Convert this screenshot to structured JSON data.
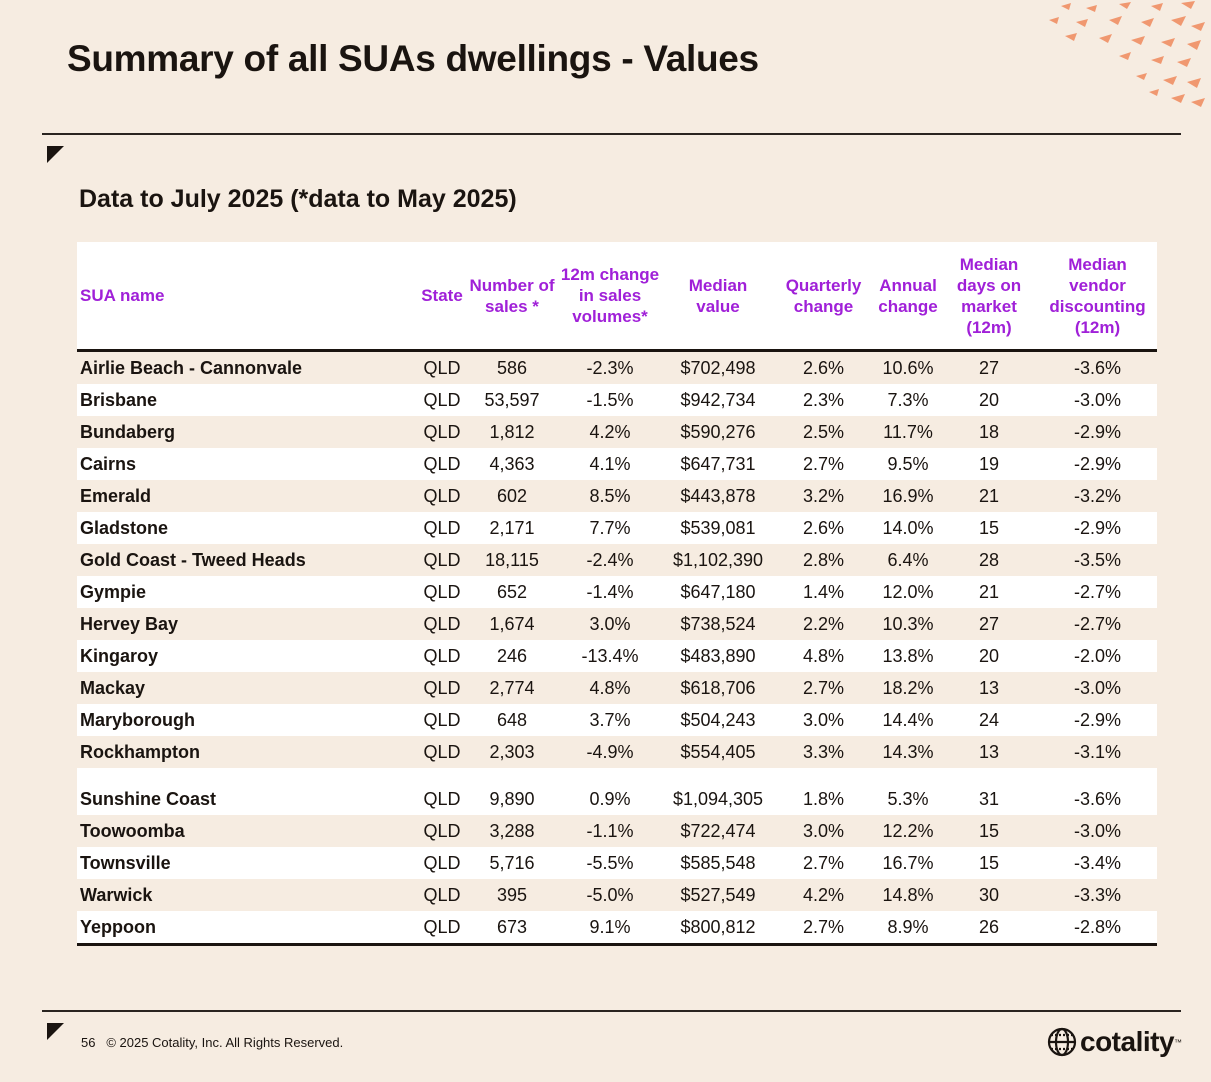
{
  "title": "Summary of all SUAs dwellings  - Values",
  "subtitle": "Data to July 2025 (*data to May 2025)",
  "table": {
    "headers": [
      "SUA name",
      "State",
      "Number of sales *",
      "12m change in sales volumes*",
      "Median value",
      "Quarterly change",
      "Annual change",
      "Median days on market (12m)",
      "Median vendor discounting (12m)"
    ],
    "rows": [
      [
        "Airlie Beach - Cannonvale",
        "QLD",
        "586",
        "-2.3%",
        "$702,498",
        "2.6%",
        "10.6%",
        "27",
        "-3.6%"
      ],
      [
        "Brisbane",
        "QLD",
        "53,597",
        "-1.5%",
        "$942,734",
        "2.3%",
        "7.3%",
        "20",
        "-3.0%"
      ],
      [
        "Bundaberg",
        "QLD",
        "1,812",
        "4.2%",
        "$590,276",
        "2.5%",
        "11.7%",
        "18",
        "-2.9%"
      ],
      [
        "Cairns",
        "QLD",
        "4,363",
        "4.1%",
        "$647,731",
        "2.7%",
        "9.5%",
        "19",
        "-2.9%"
      ],
      [
        "Emerald",
        "QLD",
        "602",
        "8.5%",
        "$443,878",
        "3.2%",
        "16.9%",
        "21",
        "-3.2%"
      ],
      [
        "Gladstone",
        "QLD",
        "2,171",
        "7.7%",
        "$539,081",
        "2.6%",
        "14.0%",
        "15",
        "-2.9%"
      ],
      [
        "Gold Coast - Tweed Heads",
        "QLD",
        "18,115",
        "-2.4%",
        "$1,102,390",
        "2.8%",
        "6.4%",
        "28",
        "-3.5%"
      ],
      [
        "Gympie",
        "QLD",
        "652",
        "-1.4%",
        "$647,180",
        "1.4%",
        "12.0%",
        "21",
        "-2.7%"
      ],
      [
        "Hervey Bay",
        "QLD",
        "1,674",
        "3.0%",
        "$738,524",
        "2.2%",
        "10.3%",
        "27",
        "-2.7%"
      ],
      [
        "Kingaroy",
        "QLD",
        "246",
        "-13.4%",
        "$483,890",
        "4.8%",
        "13.8%",
        "20",
        "-2.0%"
      ],
      [
        "Mackay",
        "QLD",
        "2,774",
        "4.8%",
        "$618,706",
        "2.7%",
        "18.2%",
        "13",
        "-3.0%"
      ],
      [
        "Maryborough",
        "QLD",
        "648",
        "3.7%",
        "$504,243",
        "3.0%",
        "14.4%",
        "24",
        "-2.9%"
      ],
      [
        "Rockhampton",
        "QLD",
        "2,303",
        "-4.9%",
        "$554,405",
        "3.3%",
        "14.3%",
        "13",
        "-3.1%"
      ],
      [
        "Sunshine Coast",
        "QLD",
        "9,890",
        "0.9%",
        "$1,094,305",
        "1.8%",
        "5.3%",
        "31",
        "-3.6%"
      ],
      [
        "Toowoomba",
        "QLD",
        "3,288",
        "-1.1%",
        "$722,474",
        "3.0%",
        "12.2%",
        "15",
        "-3.0%"
      ],
      [
        "Townsville",
        "QLD",
        "5,716",
        "-5.5%",
        "$585,548",
        "2.7%",
        "16.7%",
        "15",
        "-3.4%"
      ],
      [
        "Warwick",
        "QLD",
        "395",
        "-5.0%",
        "$527,549",
        "4.2%",
        "14.8%",
        "30",
        "-3.3%"
      ],
      [
        "Yeppoon",
        "QLD",
        "673",
        "9.1%",
        "$800,812",
        "2.7%",
        "8.9%",
        "26",
        "-2.8%"
      ]
    ]
  },
  "footer": {
    "page_number": "56",
    "copyright": "© 2025 Cotality, Inc. All Rights Reserved."
  },
  "logo": {
    "text": "cotality",
    "tm": "™"
  },
  "colors": {
    "background": "#f6ece1",
    "header_text": "#a020d8",
    "accent_orange": "#f08a5d"
  }
}
